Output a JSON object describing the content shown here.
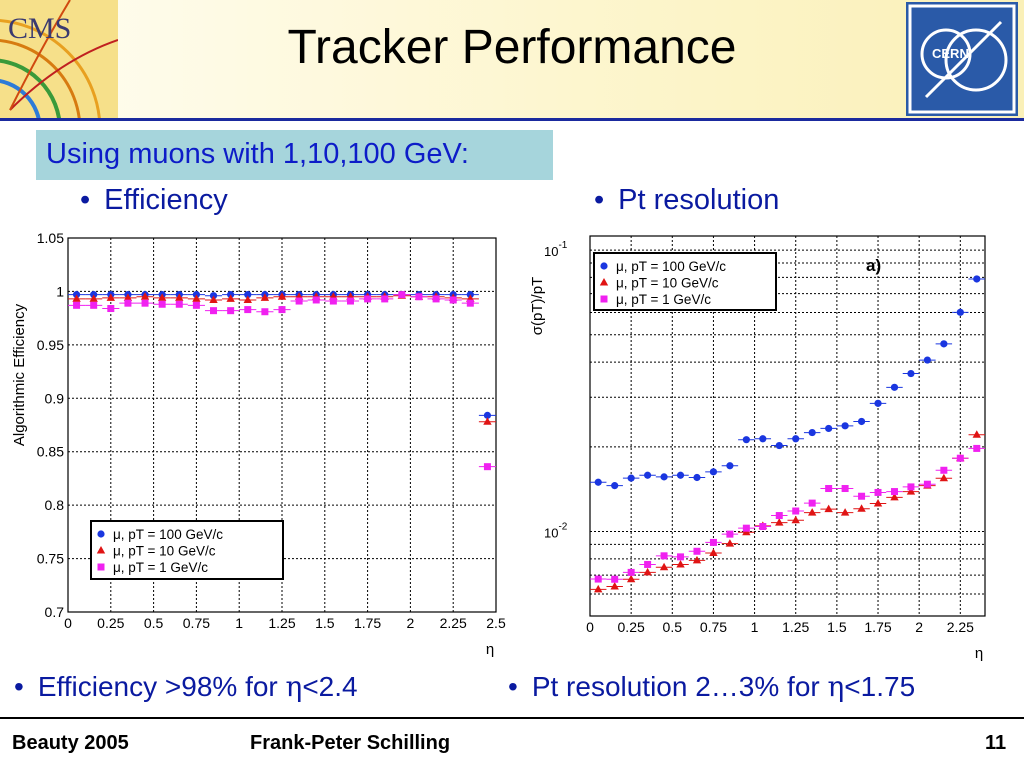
{
  "slide": {
    "title": "Tracker Performance",
    "subtitle": "Using muons with 1,10,100 GeV:",
    "bullet_left": "Efficiency",
    "bullet_right": "Pt resolution",
    "bottom_left_prefix": "Efficiency >98% for ",
    "bottom_left_suffix": "<2.4",
    "bottom_right_prefix": "Pt resolution 2…3% for ",
    "bottom_right_suffix": "<1.75",
    "eta_symbol": "η",
    "bullet_symbol": "•",
    "logo_left_text": "CMS",
    "logo_right_text": "CERN"
  },
  "footer": {
    "left": "Beauty 2005",
    "center": "Frank-Peter Schilling",
    "page": "11"
  },
  "colors": {
    "title_bar": "#faf0b8",
    "subtitle_bg": "#a6d5dc",
    "subtitle_text": "#0d1cc8",
    "bullet_text": "#0a1aa0",
    "series_100": "#1a36e0",
    "series_10": "#e01414",
    "series_1": "#f021f0",
    "cern_blue": "#2a5aa8"
  },
  "chart_data": [
    {
      "type": "scatter",
      "ylabel": "Algorithmic Efficiency",
      "xlabel": "η",
      "xlim": [
        0,
        2.5
      ],
      "ylim": [
        0.7,
        1.05
      ],
      "xticks": [
        "0",
        "0.25",
        "0.5",
        "0.75",
        "1",
        "1.25",
        "1.5",
        "1.75",
        "2",
        "2.25",
        "2.5"
      ],
      "yticks": [
        "0.7",
        "0.75",
        "0.8",
        "0.85",
        "0.9",
        "0.95",
        "1",
        "1.05"
      ],
      "grid": true,
      "legend_position": "bottom-left",
      "x": [
        0.05,
        0.15,
        0.25,
        0.35,
        0.45,
        0.55,
        0.65,
        0.75,
        0.85,
        0.95,
        1.05,
        1.15,
        1.25,
        1.35,
        1.45,
        1.55,
        1.65,
        1.75,
        1.85,
        1.95,
        2.05,
        2.15,
        2.25,
        2.35,
        2.45
      ],
      "series": [
        {
          "name": "μ, pT = 100 GeV/c",
          "marker": "circle",
          "values": [
            0.997,
            0.997,
            0.997,
            0.997,
            0.997,
            0.997,
            0.997,
            0.997,
            0.996,
            0.997,
            0.997,
            0.997,
            0.997,
            0.997,
            0.997,
            0.997,
            0.997,
            0.997,
            0.997,
            0.997,
            0.997,
            0.997,
            0.997,
            0.997,
            0.884
          ]
        },
        {
          "name": "μ, pT = 10 GeV/c",
          "marker": "triangle",
          "values": [
            0.993,
            0.993,
            0.994,
            0.994,
            0.995,
            0.994,
            0.994,
            0.993,
            0.992,
            0.993,
            0.992,
            0.994,
            0.995,
            0.995,
            0.995,
            0.995,
            0.995,
            0.995,
            0.995,
            0.996,
            0.995,
            0.995,
            0.994,
            0.993,
            0.878
          ]
        },
        {
          "name": "μ, pT = 1 GeV/c",
          "marker": "square",
          "values": [
            0.987,
            0.987,
            0.984,
            0.989,
            0.989,
            0.988,
            0.988,
            0.987,
            0.982,
            0.982,
            0.983,
            0.981,
            0.983,
            0.991,
            0.992,
            0.991,
            0.991,
            0.993,
            0.993,
            0.997,
            0.995,
            0.993,
            0.992,
            0.989,
            0.836
          ]
        }
      ]
    },
    {
      "type": "scatter",
      "ylabel": "σ(pT)/pT",
      "xlabel": "η",
      "annotation": "a)",
      "xlim": [
        0,
        2.4
      ],
      "ylim_log10": [
        -2.3,
        -0.95
      ],
      "yscale": "log",
      "xticks": [
        "0",
        "0.25",
        "0.5",
        "0.75",
        "1",
        "1.25",
        "1.5",
        "1.75",
        "2",
        "2.25"
      ],
      "yticks": [
        "10^-2",
        "10^-1"
      ],
      "grid": true,
      "legend_position": "top-left",
      "x": [
        0.05,
        0.15,
        0.25,
        0.35,
        0.45,
        0.55,
        0.65,
        0.75,
        0.85,
        0.95,
        1.05,
        1.15,
        1.25,
        1.35,
        1.45,
        1.55,
        1.65,
        1.75,
        1.85,
        1.95,
        2.05,
        2.15,
        2.25,
        2.35
      ],
      "series": [
        {
          "name": "μ, pT = 100 GeV/c",
          "marker": "circle",
          "values": [
            0.01497,
            0.01456,
            0.01548,
            0.01585,
            0.01564,
            0.01585,
            0.01556,
            0.0163,
            0.01713,
            0.0212,
            0.02136,
            0.02021,
            0.02136,
            0.02247,
            0.02325,
            0.02375,
            0.02461,
            0.02854,
            0.03254,
            0.03642,
            0.04066,
            0.04644,
            0.0601,
            0.07895
          ]
        },
        {
          "name": "μ, pT = 10 GeV/c",
          "marker": "triangle",
          "values": [
            0.00623,
            0.00638,
            0.00677,
            0.00716,
            0.00747,
            0.00764,
            0.0079,
            0.00839,
            0.00906,
            0.00994,
            0.01048,
            0.01076,
            0.01097,
            0.01168,
            0.01202,
            0.01168,
            0.01205,
            0.01258,
            0.01322,
            0.01387,
            0.01456,
            0.01546,
            0.01822,
            0.02208
          ]
        },
        {
          "name": "μ, pT = 1 GeV/c",
          "marker": "square",
          "values": [
            0.00678,
            0.00677,
            0.00716,
            0.00764,
            0.0082,
            0.00813,
            0.00851,
            0.00915,
            0.00979,
            0.01028,
            0.01042,
            0.0114,
            0.01183,
            0.01262,
            0.01422,
            0.01422,
            0.01335,
            0.01377,
            0.01387,
            0.01441,
            0.01473,
            0.01651,
            0.01822,
            0.01974
          ]
        }
      ]
    }
  ]
}
